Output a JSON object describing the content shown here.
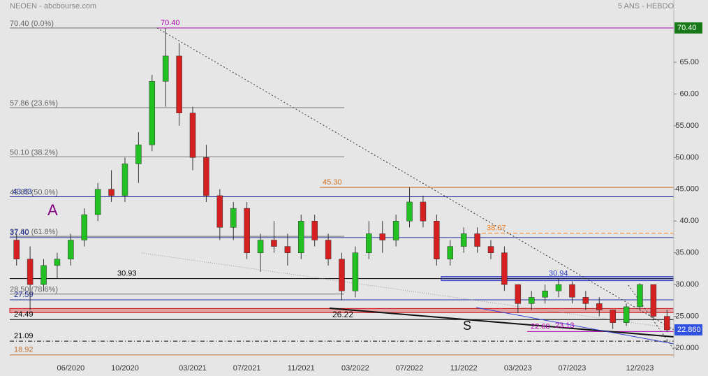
{
  "chart_data": {
    "type": "candlestick",
    "title": "NEOEN - abcbourse.com",
    "subtitle": "5 ANS - HEBDO",
    "categories": [
      null,
      null,
      null,
      null,
      "06/2020",
      null,
      null,
      null,
      "10/2020",
      null,
      null,
      null,
      null,
      "03/2021",
      null,
      null,
      null,
      "07/2021",
      null,
      null,
      null,
      "11/2021",
      null,
      null,
      null,
      "03/2022",
      null,
      null,
      null,
      "07/2022",
      null,
      null,
      null,
      "11/2022",
      null,
      null,
      null,
      "03/2023",
      null,
      null,
      null,
      "07/2023",
      null,
      null,
      null,
      null,
      "12/2023",
      null,
      null
    ],
    "open": [
      37,
      34,
      30,
      33,
      34,
      37,
      41,
      45,
      44,
      49,
      52,
      62,
      66,
      57,
      50,
      44,
      39,
      42,
      35,
      37,
      36,
      35,
      40,
      37,
      34,
      29,
      35,
      38,
      37,
      40,
      43,
      40,
      34,
      36,
      38,
      36,
      35,
      30,
      27,
      28,
      29,
      30,
      28,
      27,
      26,
      24,
      26.5,
      30,
      25
    ],
    "high": [
      38,
      36,
      34,
      35,
      38,
      42,
      46,
      48,
      50,
      54,
      63,
      70.4,
      68,
      58,
      52,
      45,
      43,
      43,
      38,
      40,
      38,
      41,
      41,
      38,
      35,
      36,
      40,
      40,
      41,
      45.3,
      44,
      41,
      37,
      39,
      39,
      37,
      36,
      30,
      29,
      30,
      30.9,
      30.5,
      29,
      28,
      26,
      27,
      30.2,
      30,
      26
    ],
    "low": [
      33,
      26,
      29,
      31,
      33,
      36,
      40,
      43,
      43,
      46,
      51,
      58,
      55,
      48,
      43,
      37,
      37,
      34,
      32,
      35,
      33,
      34,
      36,
      33,
      27.5,
      28,
      34,
      35,
      36,
      39,
      39,
      33,
      33,
      35,
      35,
      34,
      29,
      25.5,
      26,
      27,
      28,
      27,
      26,
      25,
      23,
      23.5,
      26,
      24.5,
      22.5
    ],
    "close": [
      34,
      30,
      33,
      34,
      37,
      41,
      45,
      44,
      49,
      52,
      62,
      66,
      57,
      50,
      44,
      39,
      42,
      35,
      37,
      36,
      35,
      40,
      37,
      34,
      29,
      35,
      38,
      37,
      40,
      43,
      40,
      34,
      36,
      38,
      36,
      35,
      30,
      27,
      28,
      29,
      30,
      28,
      27,
      26,
      24,
      26.5,
      30,
      25,
      22.86
    ],
    "up_color": "#22c022",
    "down_color": "#d42020",
    "ylim": [
      15.6,
      74.8
    ],
    "yticks": [
      {
        "value": 65,
        "label": "65.00"
      },
      {
        "value": 60,
        "label": "60.00"
      },
      {
        "value": 55,
        "label": "55.000"
      },
      {
        "value": 50,
        "label": "50.000"
      },
      {
        "value": 45,
        "label": "45.000"
      },
      {
        "value": 40,
        "label": "40.00"
      },
      {
        "value": 35,
        "label": "35.000"
      },
      {
        "value": 30,
        "label": "30.000"
      },
      {
        "value": 25,
        "label": "25.000"
      },
      {
        "value": 20,
        "label": "20.000"
      }
    ],
    "fibonacci": [
      {
        "value": 70.4,
        "label": "70.40 (0.0%)"
      },
      {
        "value": 57.86,
        "label": "57.86 (23.6%)"
      },
      {
        "value": 50.1,
        "label": "50.10 (38.2%)"
      },
      {
        "value": 43.83,
        "label": "43.83 (50.0%)"
      },
      {
        "value": 37.6,
        "label": "37.60 (61.8%)"
      },
      {
        "value": 28.5,
        "label": "28.50 (78.6%)"
      }
    ],
    "levels": [
      {
        "value": 70.4,
        "label": "70.40",
        "color": "#b000b0"
      },
      {
        "value": 45.3,
        "label": "45.30",
        "color": "#d07020"
      },
      {
        "value": 43.83,
        "label": "43.83",
        "color": "#2030a0"
      },
      {
        "value": 38.07,
        "label": "38.07",
        "color": "#f08020",
        "style": "dash"
      },
      {
        "value": 37.4,
        "label": "37.40",
        "color": "#2030a0"
      },
      {
        "value": 30.93,
        "label": "30.93",
        "color": "#000000"
      },
      {
        "value": 30.94,
        "label": "30.94",
        "color": "#3040c0",
        "style": "band"
      },
      {
        "value": 27.59,
        "label": "27.59",
        "color": "#2030a0"
      },
      {
        "value": 25.9,
        "color": "#d02020",
        "style": "band"
      },
      {
        "value": 24.49,
        "label": "24.49",
        "color": "#000000"
      },
      {
        "value": 22.6,
        "label": "22.60",
        "color": "#b000b0"
      },
      {
        "value": 21.09,
        "label": "21.09",
        "color": "#000000",
        "style": "dashdot"
      },
      {
        "value": 18.92,
        "label": "18.92",
        "color": "#c07030"
      }
    ],
    "annotations": [
      "A",
      "S",
      "26.22",
      "23.13"
    ],
    "price_tags": [
      {
        "value": 70.4,
        "label": "70.40",
        "color": "#187818"
      },
      {
        "value": 22.86,
        "label": "22.860",
        "color": "#3050e0"
      }
    ]
  }
}
